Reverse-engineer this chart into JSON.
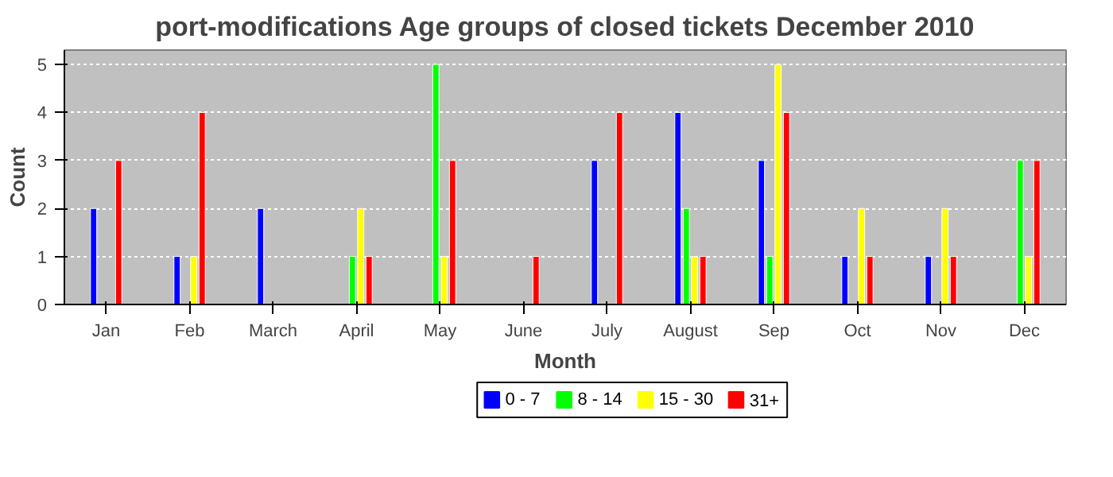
{
  "chart_data": {
    "type": "bar",
    "title": "port-modifications Age groups of closed tickets December 2010",
    "xlabel": "Month",
    "ylabel": "Count",
    "categories": [
      "Jan",
      "Feb",
      "March",
      "April",
      "May",
      "June",
      "July",
      "August",
      "Sep",
      "Oct",
      "Nov",
      "Dec"
    ],
    "series": [
      {
        "name": "0 - 7",
        "color": "#0000ff",
        "values": [
          2,
          1,
          2,
          null,
          null,
          null,
          3,
          4,
          3,
          1,
          1,
          null
        ]
      },
      {
        "name": "8 - 14",
        "color": "#00ff00",
        "values": [
          null,
          null,
          null,
          1,
          5,
          null,
          null,
          2,
          1,
          null,
          null,
          3
        ]
      },
      {
        "name": "15 - 30",
        "color": "#ffff00",
        "values": [
          null,
          1,
          null,
          2,
          1,
          null,
          null,
          1,
          5,
          2,
          2,
          1
        ]
      },
      {
        "name": "31+",
        "color": "#ff0000",
        "values": [
          3,
          4,
          null,
          1,
          3,
          1,
          4,
          1,
          4,
          1,
          1,
          3
        ]
      }
    ],
    "ylim": [
      0,
      5.3
    ],
    "yticks": [
      0,
      1,
      2,
      3,
      4,
      5
    ],
    "grid": "y",
    "legend": "bottom"
  }
}
